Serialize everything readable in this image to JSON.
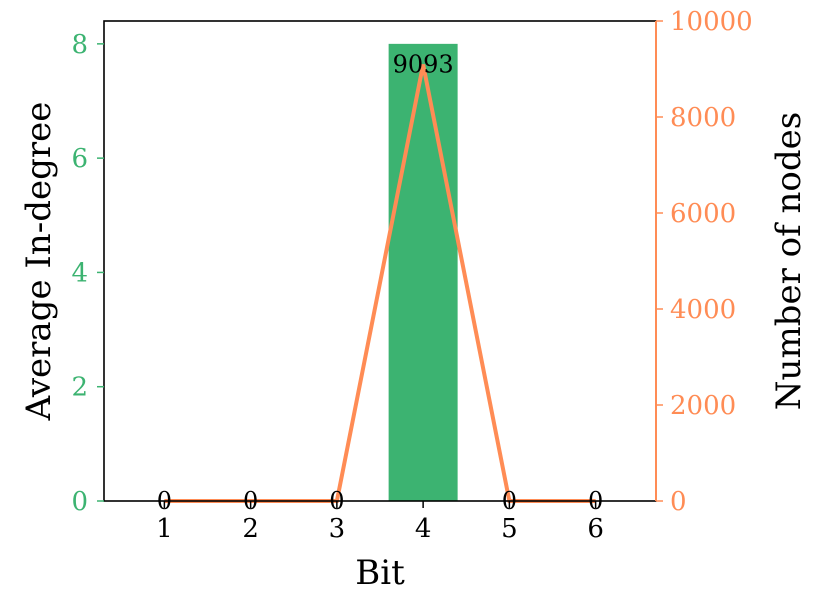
{
  "chart_data": {
    "type": "bar",
    "x": [
      1,
      2,
      3,
      4,
      5,
      6
    ],
    "xlabel": "Bit",
    "xlim": [
      0.3,
      6.7
    ],
    "xticks": [
      "1",
      "2",
      "3",
      "4",
      "5",
      "6"
    ],
    "series": [
      {
        "axis": "left",
        "type": "bar",
        "values": [
          0,
          0,
          0,
          8,
          0,
          0
        ],
        "color": "#3cb371"
      },
      {
        "axis": "right",
        "type": "line",
        "values": [
          0,
          0,
          0,
          9093,
          0,
          0
        ],
        "color": "#ff8c55",
        "data_labels": [
          "0",
          "0",
          "0",
          "9093",
          "0",
          "0"
        ]
      }
    ],
    "left_axis": {
      "label": "Average In-degree",
      "ylim": [
        0,
        8.4
      ],
      "ticks": [
        0,
        2,
        4,
        6,
        8
      ],
      "color": "#3cb371"
    },
    "right_axis": {
      "label": "Number of nodes",
      "ylim": [
        0,
        10000
      ],
      "ticks": [
        0,
        2000,
        4000,
        6000,
        8000,
        10000
      ],
      "color": "#ff8c55"
    },
    "grid": false
  }
}
